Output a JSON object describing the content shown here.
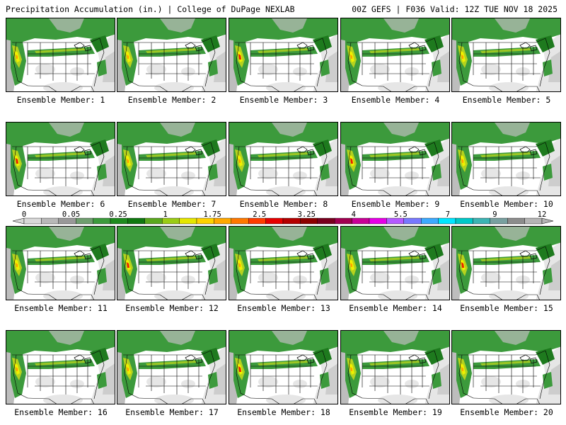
{
  "header": {
    "left_title": "Precipitation Accumulation (in.) | College of DuPage NEXLAB",
    "right_title": "00Z GEFS | F036 Valid: 12Z TUE NOV 18 2025"
  },
  "panels": [
    {
      "label": "Ensemble Member: 1"
    },
    {
      "label": "Ensemble Member: 2"
    },
    {
      "label": "Ensemble Member: 3"
    },
    {
      "label": "Ensemble Member: 4"
    },
    {
      "label": "Ensemble Member: 5"
    },
    {
      "label": "Ensemble Member: 6"
    },
    {
      "label": "Ensemble Member: 7"
    },
    {
      "label": "Ensemble Member: 8"
    },
    {
      "label": "Ensemble Member: 9"
    },
    {
      "label": "Ensemble Member: 10"
    },
    {
      "label": "Ensemble Member: 11"
    },
    {
      "label": "Ensemble Member: 12"
    },
    {
      "label": "Ensemble Member: 13"
    },
    {
      "label": "Ensemble Member: 14"
    },
    {
      "label": "Ensemble Member: 15"
    },
    {
      "label": "Ensemble Member: 16"
    },
    {
      "label": "Ensemble Member: 17"
    },
    {
      "label": "Ensemble Member: 18"
    },
    {
      "label": "Ensemble Member: 19"
    },
    {
      "label": "Ensemble Member: 20"
    }
  ],
  "legend": {
    "ticks": [
      "0",
      "0.05",
      "0.25",
      "1",
      "1.75",
      "2.5",
      "3.25",
      "4",
      "5.5",
      "7",
      "9",
      "12"
    ],
    "colors": [
      "#d8d8d8",
      "#b8b8b8",
      "#989898",
      "#6e9e6e",
      "#3c9a3c",
      "#1e8a1e",
      "#107810",
      "#5aa81e",
      "#9acc14",
      "#e6e600",
      "#ffd200",
      "#ffa800",
      "#ff7800",
      "#ff3c00",
      "#e60000",
      "#b40000",
      "#8c0000",
      "#78001e",
      "#a00050",
      "#c80096",
      "#e600e6",
      "#b45aff",
      "#7878ff",
      "#3caaff",
      "#00e6ff",
      "#00c8c8",
      "#3cb4b4",
      "#78a0a0",
      "#8c8c8c",
      "#b4b4b4"
    ]
  },
  "map_colors": {
    "ocean_gray": "#bdbdbd",
    "light_gray": "#e6e6e6",
    "green": "#3c9a3c",
    "dark_green": "#1e7a1e",
    "yellow_green": "#b4d21e",
    "yellow": "#f0f000",
    "orange": "#ffa000",
    "red": "#e61e00"
  }
}
